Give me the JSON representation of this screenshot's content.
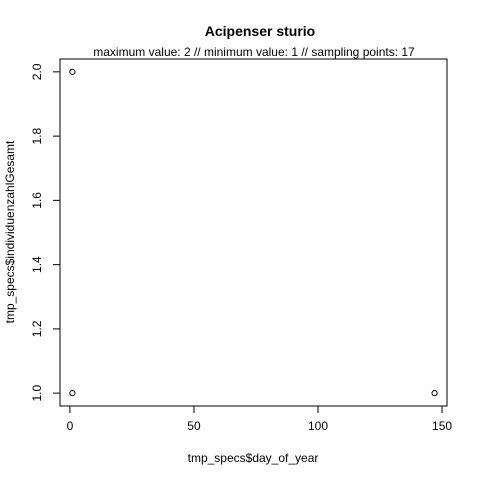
{
  "chart_data": {
    "type": "scatter",
    "title": "Acipenser sturio",
    "subtitle": "maximum value: 2  //  minimum value: 1  // sampling points: 17",
    "xlabel": "tmp_specs$day_of_year",
    "ylabel": "tmp_specs$individuenzahlGesamt",
    "xlim": [
      -4,
      152
    ],
    "ylim": [
      0.96,
      2.04
    ],
    "xticks": [
      0,
      50,
      100,
      150
    ],
    "yticks": [
      1.0,
      1.2,
      1.4,
      1.6,
      1.8,
      2.0
    ],
    "ytick_labels": [
      "1.0",
      "1.2",
      "1.4",
      "1.6",
      "1.8",
      "2.0"
    ],
    "grid": false,
    "marker": "open-circle",
    "points": [
      {
        "x": 1,
        "y": 2
      },
      {
        "x": 1,
        "y": 1
      },
      {
        "x": 147,
        "y": 1
      }
    ]
  }
}
